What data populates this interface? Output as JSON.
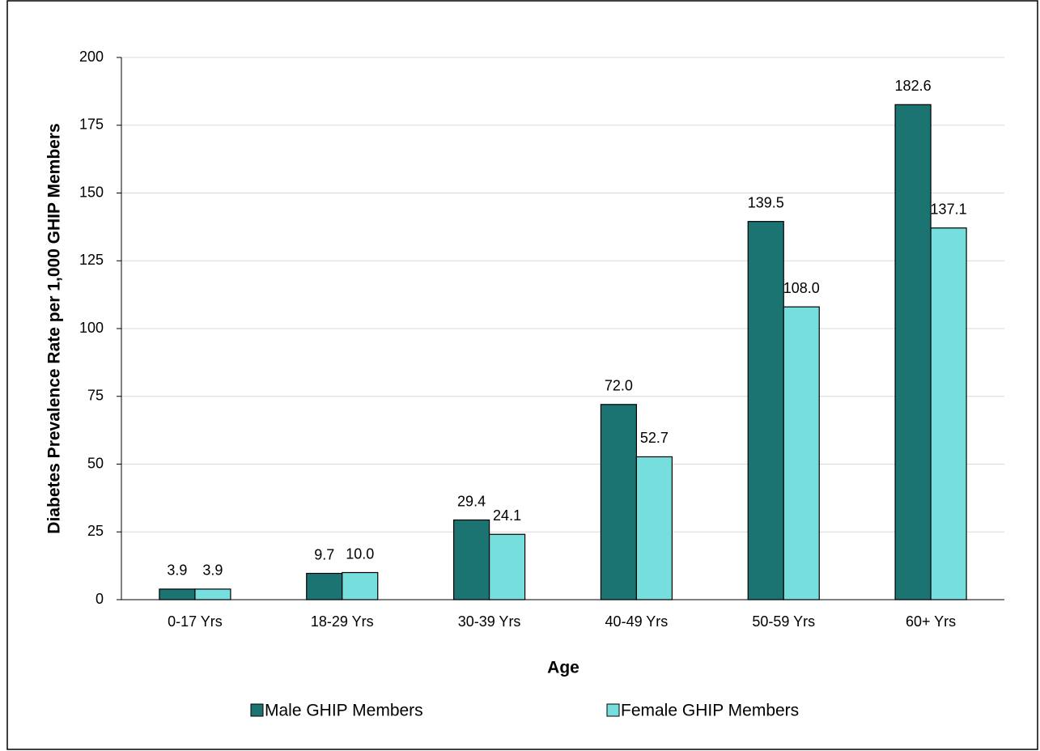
{
  "chart_data": {
    "type": "bar",
    "x_label": "Age",
    "y_label": "Diabetes Prevalence Rate per 1,000 GHIP Members",
    "categories": [
      "0-17 Yrs",
      "18-29 Yrs",
      "30-39 Yrs",
      "40-49 Yrs",
      "50-59 Yrs",
      "60+ Yrs"
    ],
    "series": [
      {
        "name": "Male GHIP Members",
        "color": "#1c7472",
        "values": [
          3.9,
          9.7,
          29.4,
          72.0,
          139.5,
          182.6
        ],
        "value_labels": [
          "3.9",
          "9.7",
          "29.4",
          "72.0",
          "139.5",
          "182.6"
        ]
      },
      {
        "name": "Female GHIP Members",
        "color": "#76dfdd",
        "values": [
          3.9,
          10.0,
          24.1,
          52.7,
          108.0,
          137.1
        ],
        "value_labels": [
          "3.9",
          "10.0",
          "24.1",
          "52.7",
          "108.0",
          "137.1"
        ]
      }
    ],
    "ylim": [
      0,
      200
    ],
    "yticks": [
      0,
      25,
      50,
      75,
      100,
      125,
      150,
      175,
      200
    ],
    "grid": true,
    "legend": "bottom"
  }
}
